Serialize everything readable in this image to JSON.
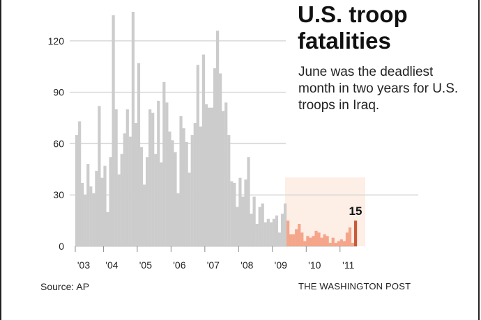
{
  "title_line1": "U.S. troop",
  "title_line2": "fatalities",
  "subtitle": "June was the deadliest month in two years for U.S. troops in Iraq.",
  "source": "Source: AP",
  "credit": "THE WASHINGTON POST",
  "colors": {
    "bar_default": "#cccccc",
    "bar_highlight": "#f4a58a",
    "bar_last": "#c85a3a",
    "highlight_bg": "#fdeee6",
    "grid": "#d8d8d8",
    "text": "#222222"
  },
  "chart_data": {
    "type": "bar",
    "title": "U.S. troop fatalities",
    "subtitle": "June was the deadliest month in two years for U.S. troops in Iraq.",
    "xlabel": "",
    "ylabel": "",
    "ylim": [
      0,
      130
    ],
    "yticks": [
      0,
      30,
      60,
      90,
      120
    ],
    "grid": true,
    "x_tick_labels": [
      "'03",
      "'04",
      "'05",
      "'06",
      "'07",
      "'08",
      "'09",
      "'10",
      "'11"
    ],
    "x_tick_month_index": [
      0,
      10,
      22,
      34,
      46,
      58,
      70,
      82,
      94
    ],
    "highlight_from_index": 75,
    "annotation": {
      "label": "15",
      "month_index": 99
    },
    "x": [
      "2003-03",
      "2003-04",
      "2003-05",
      "2003-06",
      "2003-07",
      "2003-08",
      "2003-09",
      "2003-10",
      "2003-11",
      "2003-12",
      "2004-01",
      "2004-02",
      "2004-03",
      "2004-04",
      "2004-05",
      "2004-06",
      "2004-07",
      "2004-08",
      "2004-09",
      "2004-10",
      "2004-11",
      "2004-12",
      "2005-01",
      "2005-02",
      "2005-03",
      "2005-04",
      "2005-05",
      "2005-06",
      "2005-07",
      "2005-08",
      "2005-09",
      "2005-10",
      "2005-11",
      "2005-12",
      "2006-01",
      "2006-02",
      "2006-03",
      "2006-04",
      "2006-05",
      "2006-06",
      "2006-07",
      "2006-08",
      "2006-09",
      "2006-10",
      "2006-11",
      "2006-12",
      "2007-01",
      "2007-02",
      "2007-03",
      "2007-04",
      "2007-05",
      "2007-06",
      "2007-07",
      "2007-08",
      "2007-09",
      "2007-10",
      "2007-11",
      "2007-12",
      "2008-01",
      "2008-02",
      "2008-03",
      "2008-04",
      "2008-05",
      "2008-06",
      "2008-07",
      "2008-08",
      "2008-09",
      "2008-10",
      "2008-11",
      "2008-12",
      "2009-01",
      "2009-02",
      "2009-03",
      "2009-04",
      "2009-05",
      "2009-06",
      "2009-07",
      "2009-08",
      "2009-09",
      "2009-10",
      "2009-11",
      "2009-12",
      "2010-01",
      "2010-02",
      "2010-03",
      "2010-04",
      "2010-05",
      "2010-06",
      "2010-07",
      "2010-08",
      "2010-09",
      "2010-10",
      "2010-11",
      "2010-12",
      "2011-01",
      "2011-02",
      "2011-03",
      "2011-04",
      "2011-05",
      "2011-06"
    ],
    "values": [
      65,
      73,
      37,
      30,
      48,
      35,
      31,
      44,
      82,
      40,
      47,
      20,
      52,
      135,
      80,
      42,
      54,
      66,
      80,
      64,
      137,
      72,
      107,
      58,
      36,
      52,
      80,
      78,
      54,
      85,
      49,
      96,
      84,
      67,
      62,
      55,
      31,
      76,
      69,
      61,
      43,
      65,
      72,
      106,
      70,
      112,
      83,
      81,
      81,
      104,
      126,
      101,
      79,
      84,
      65,
      38,
      37,
      23,
      40,
      29,
      39,
      52,
      19,
      29,
      13,
      23,
      25,
      14,
      16,
      14,
      16,
      18,
      8,
      19,
      25,
      15,
      7,
      7,
      10,
      13,
      8,
      3,
      6,
      5,
      6,
      9,
      8,
      5,
      7,
      6,
      2,
      5,
      2,
      3,
      4,
      3,
      8,
      11,
      2,
      15
    ]
  }
}
